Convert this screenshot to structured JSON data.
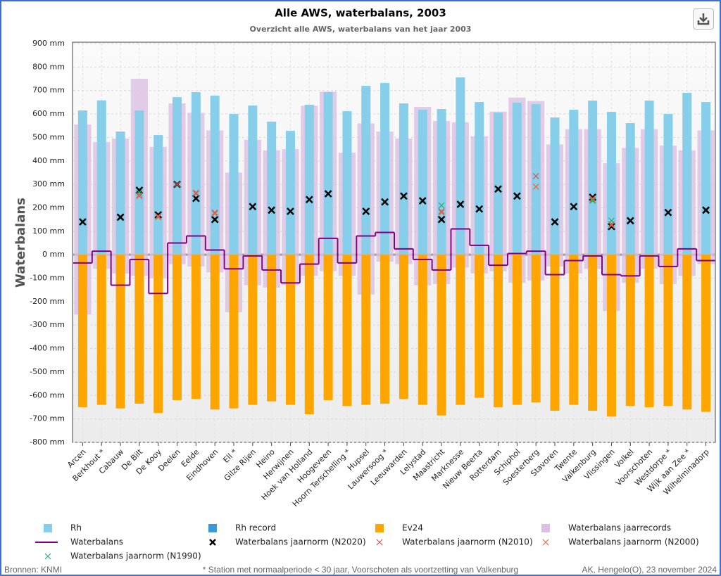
{
  "chart_data": {
    "type": "combo",
    "title": "Alle AWS, waterbalans, 2003",
    "subtitle": "Overzicht alle AWS, waterbalans van het jaar 2003",
    "y_label": "Waterbalans",
    "source": "Bronnen: KNMI",
    "note": "* Station met normaalperiode < 30 jaar, Voorschoten als voortzetting van Valkenburg",
    "credit": "AK, Hengelo(O), 23 november 2024",
    "grid": true,
    "ylim": [
      -800,
      900
    ],
    "yticks": [
      {
        "value": 900,
        "label": "900 mm"
      },
      {
        "value": 800,
        "label": "800 mm"
      },
      {
        "value": 700,
        "label": "700 mm"
      },
      {
        "value": 600,
        "label": "600 mm"
      },
      {
        "value": 500,
        "label": "500 mm"
      },
      {
        "value": 400,
        "label": "400 mm"
      },
      {
        "value": 300,
        "label": "300 mm"
      },
      {
        "value": 200,
        "label": "200 mm"
      },
      {
        "value": 100,
        "label": "100 mm"
      },
      {
        "value": 0,
        "label": "0 mm"
      },
      {
        "value": -100,
        "label": "-100 mm"
      },
      {
        "value": -200,
        "label": "-200 mm"
      },
      {
        "value": -300,
        "label": "-300 mm"
      },
      {
        "value": -400,
        "label": "-400 mm"
      },
      {
        "value": -500,
        "label": "-500 mm"
      },
      {
        "value": -600,
        "label": "-600 mm"
      },
      {
        "value": -700,
        "label": "-700 mm"
      },
      {
        "value": -800,
        "label": "-800 mm"
      }
    ],
    "categories": [
      "Arcen",
      "Berkhout *",
      "Cabauw",
      "De Bilt",
      "De Kooy",
      "Deelen",
      "Eelde",
      "Eindhoven",
      "Ell *",
      "Gilze Rijen",
      "Heino",
      "Herwijnen",
      "Hoek van Holland",
      "Hoogeveen",
      "Hoorn Terschelling *",
      "Hupsel",
      "Lauwersoog *",
      "Leeuwarden",
      "Lelystad",
      "Maastricht",
      "Marknesse",
      "Nieuw Beerta",
      "Rotterdam",
      "Schiphol",
      "Soesterberg",
      "Stavoren",
      "Twente",
      "Valkenburg",
      "Vlissingen",
      "Volkel",
      "Voorschoten",
      "Westdorpe *",
      "Wijk aan Zee *",
      "Wilhelminadorp"
    ],
    "series": [
      {
        "name": "Rh",
        "type": "bar",
        "color": "#87ceeb",
        "values": [
          615,
          658,
          525,
          615,
          510,
          672,
          693,
          678,
          600,
          636,
          567,
          528,
          639,
          693,
          612,
          720,
          732,
          645,
          618,
          621,
          756,
          651,
          606,
          648,
          642,
          585,
          618,
          657,
          609,
          561,
          657,
          600,
          690,
          651
        ]
      },
      {
        "name": "Rh record",
        "type": "bar",
        "color": "#3a9ad9",
        "values": [
          null,
          null,
          null,
          null,
          null,
          null,
          null,
          null,
          null,
          null,
          null,
          null,
          null,
          null,
          null,
          null,
          null,
          null,
          null,
          null,
          null,
          null,
          null,
          null,
          null,
          null,
          null,
          null,
          null,
          null,
          null,
          null,
          null,
          null
        ]
      },
      {
        "name": "Ev24",
        "type": "bar",
        "color": "#ffa500",
        "values": [
          -650,
          -640,
          -655,
          -635,
          -675,
          -620,
          -615,
          -660,
          -655,
          -640,
          -625,
          -640,
          -680,
          -620,
          -645,
          -640,
          -635,
          -615,
          -640,
          -685,
          -640,
          -610,
          -650,
          -640,
          -630,
          -665,
          -640,
          -665,
          -690,
          -645,
          -650,
          -645,
          -660,
          -670
        ]
      },
      {
        "name": "Waterbalans jaarrecords",
        "type": "range",
        "color": "#dcbfe2",
        "values": [
          [
            -255,
            555
          ],
          [
            -60,
            480
          ],
          [
            -80,
            495
          ],
          [
            -90,
            750
          ],
          [
            -100,
            460
          ],
          [
            -40,
            645
          ],
          [
            -50,
            605
          ],
          [
            -75,
            530
          ],
          [
            -245,
            350
          ],
          [
            -130,
            490
          ],
          [
            -140,
            445
          ],
          [
            -130,
            450
          ],
          [
            -90,
            635
          ],
          [
            -70,
            695
          ],
          [
            -90,
            435
          ],
          [
            -170,
            560
          ],
          [
            -30,
            525
          ],
          [
            -40,
            495
          ],
          [
            -130,
            630
          ],
          [
            -125,
            570
          ],
          [
            -55,
            565
          ],
          [
            -80,
            505
          ],
          [
            -70,
            610
          ],
          [
            -120,
            670
          ],
          [
            -110,
            655
          ],
          [
            -50,
            470
          ],
          [
            -80,
            535
          ],
          [
            -60,
            535
          ],
          [
            -240,
            390
          ],
          [
            -120,
            455
          ],
          [
            -60,
            535
          ],
          [
            -125,
            465
          ],
          [
            -90,
            445
          ],
          [
            -40,
            530
          ]
        ]
      },
      {
        "name": "Waterbalans",
        "type": "step",
        "color": "#800080",
        "values": [
          -35,
          15,
          -130,
          -20,
          -165,
          50,
          80,
          20,
          -60,
          -5,
          -65,
          -120,
          -40,
          70,
          -35,
          80,
          95,
          25,
          -20,
          -65,
          110,
          40,
          -45,
          5,
          15,
          -85,
          -25,
          -5,
          -85,
          -90,
          -5,
          -50,
          25,
          -25
        ]
      },
      {
        "name": "Waterbalans jaarnorm (N2020)",
        "type": "marker",
        "color": "#000000",
        "values": [
          140,
          null,
          160,
          275,
          170,
          300,
          240,
          150,
          null,
          205,
          190,
          185,
          235,
          260,
          null,
          185,
          225,
          250,
          230,
          150,
          215,
          195,
          280,
          250,
          null,
          140,
          205,
          245,
          120,
          145,
          null,
          180,
          null,
          190
        ]
      },
      {
        "name": "Waterbalans jaarnorm (N2010)",
        "type": "marker",
        "color": "#d9534f",
        "values": [
          null,
          null,
          null,
          255,
          165,
          300,
          260,
          180,
          null,
          null,
          null,
          null,
          null,
          null,
          null,
          null,
          null,
          null,
          null,
          185,
          null,
          null,
          null,
          null,
          335,
          null,
          null,
          235,
          130,
          null,
          null,
          null,
          null,
          null
        ]
      },
      {
        "name": "Waterbalans jaarnorm (N2000)",
        "type": "marker",
        "color": "#e4683c",
        "values": [
          null,
          null,
          null,
          250,
          160,
          null,
          265,
          175,
          null,
          null,
          null,
          null,
          null,
          null,
          null,
          null,
          null,
          null,
          null,
          180,
          null,
          null,
          null,
          null,
          290,
          null,
          null,
          240,
          125,
          null,
          null,
          null,
          null,
          null
        ]
      },
      {
        "name": "Waterbalans jaarnorm (N1990)",
        "type": "marker",
        "color": "#2aa86a",
        "values": [
          null,
          null,
          null,
          265,
          null,
          null,
          null,
          null,
          null,
          null,
          null,
          null,
          null,
          null,
          null,
          null,
          null,
          null,
          null,
          210,
          null,
          null,
          null,
          null,
          null,
          null,
          null,
          230,
          145,
          null,
          null,
          null,
          null,
          null
        ]
      }
    ]
  }
}
